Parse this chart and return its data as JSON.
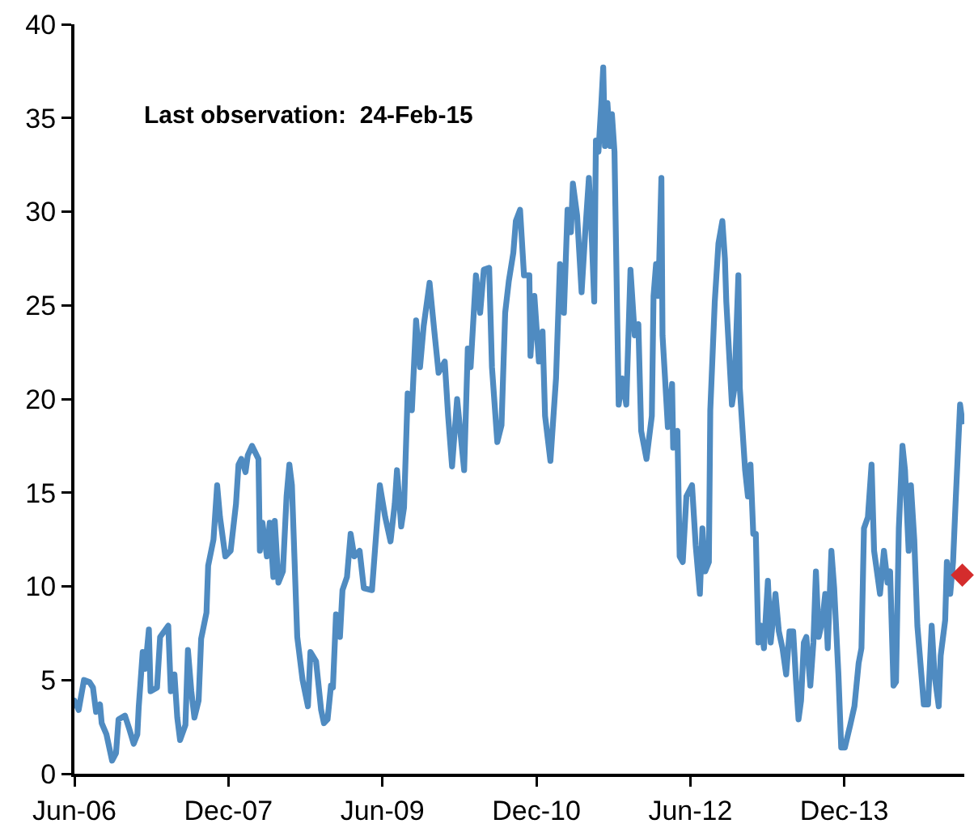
{
  "chart_data": {
    "type": "line",
    "annotations": [
      "Last observation:  24-Feb-15"
    ],
    "x": [
      "2006-06-01",
      "2006-06-16",
      "2006-07-05",
      "2006-07-24",
      "2006-08-06",
      "2006-08-17",
      "2006-08-31",
      "2006-09-06",
      "2006-09-23",
      "2006-10-13",
      "2006-10-27",
      "2006-11-05",
      "2006-11-28",
      "2006-12-13",
      "2006-12-29",
      "2007-01-11",
      "2007-01-16",
      "2007-01-30",
      "2007-02-08",
      "2007-02-21",
      "2007-02-27",
      "2007-03-22",
      "2007-04-02",
      "2007-05-01",
      "2007-05-10",
      "2007-05-23",
      "2007-06-02",
      "2007-06-12",
      "2007-07-01",
      "2007-07-10",
      "2007-07-22",
      "2007-08-02",
      "2007-08-17",
      "2007-08-26",
      "2007-09-14",
      "2007-09-20",
      "2007-10-09",
      "2007-10-22",
      "2007-11-01",
      "2007-11-20",
      "2007-12-09",
      "2007-12-28",
      "2008-01-06",
      "2008-01-16",
      "2008-01-31",
      "2008-02-08",
      "2008-02-23",
      "2008-03-17",
      "2008-03-22",
      "2008-03-31",
      "2008-04-16",
      "2008-04-26",
      "2008-05-09",
      "2008-05-14",
      "2008-05-27",
      "2008-06-12",
      "2008-06-25",
      "2008-07-05",
      "2008-07-14",
      "2008-08-02",
      "2008-08-21",
      "2008-09-09",
      "2008-09-18",
      "2008-10-08",
      "2008-10-26",
      "2008-11-05",
      "2008-11-18",
      "2008-11-30",
      "2008-12-07",
      "2008-12-18",
      "2009-01-01",
      "2009-01-10",
      "2009-01-26",
      "2009-02-08",
      "2009-02-21",
      "2009-03-12",
      "2009-03-27",
      "2009-04-25",
      "2009-05-23",
      "2009-06-11",
      "2009-06-30",
      "2009-07-15",
      "2009-07-23",
      "2009-08-07",
      "2009-08-17",
      "2009-08-30",
      "2009-09-14",
      "2009-09-29",
      "2009-10-13",
      "2009-10-26",
      "2009-11-16",
      "2009-12-03",
      "2009-12-18",
      "2010-01-09",
      "2010-01-21",
      "2010-02-04",
      "2010-02-22",
      "2010-03-19",
      "2010-04-01",
      "2010-04-11",
      "2010-04-30",
      "2010-05-15",
      "2010-05-28",
      "2010-06-16",
      "2010-06-26",
      "2010-07-15",
      "2010-07-30",
      "2010-08-12",
      "2010-08-25",
      "2010-09-10",
      "2010-09-19",
      "2010-10-04",
      "2010-10-18",
      "2010-11-06",
      "2010-11-10",
      "2010-11-24",
      "2010-12-10",
      "2010-12-23",
      "2011-01-01",
      "2011-01-20",
      "2011-02-09",
      "2011-02-23",
      "2011-03-09",
      "2011-03-22",
      "2011-04-03",
      "2011-04-10",
      "2011-04-25",
      "2011-05-11",
      "2011-05-24",
      "2011-06-06",
      "2011-06-17",
      "2011-06-25",
      "2011-07-01",
      "2011-07-10",
      "2011-07-20",
      "2011-07-27",
      "2011-08-02",
      "2011-08-11",
      "2011-08-21",
      "2011-08-27",
      "2011-09-05",
      "2011-09-20",
      "2011-10-03",
      "2011-10-17",
      "2011-11-01",
      "2011-11-16",
      "2011-11-29",
      "2011-12-09",
      "2011-12-28",
      "2012-01-16",
      "2012-01-22",
      "2012-01-31",
      "2012-02-08",
      "2012-02-19",
      "2012-02-23",
      "2012-03-03",
      "2012-03-13",
      "2012-03-28",
      "2012-04-01",
      "2012-04-16",
      "2012-04-24",
      "2012-05-05",
      "2012-05-18",
      "2012-06-07",
      "2012-06-20",
      "2012-07-05",
      "2012-07-14",
      "2012-07-24",
      "2012-08-06",
      "2012-08-11",
      "2012-08-27",
      "2012-09-09",
      "2012-09-23",
      "2012-10-02",
      "2012-10-07",
      "2012-10-27",
      "2012-11-05",
      "2012-11-19",
      "2012-11-24",
      "2012-12-13",
      "2012-12-23",
      "2013-01-01",
      "2013-01-11",
      "2013-01-20",
      "2013-01-29",
      "2013-02-08",
      "2013-02-18",
      "2013-03-04",
      "2013-03-14",
      "2013-03-31",
      "2013-04-12",
      "2013-04-25",
      "2013-05-08",
      "2013-05-20",
      "2013-06-02",
      "2013-06-12",
      "2013-06-21",
      "2013-06-30",
      "2013-07-10",
      "2013-07-19",
      "2013-08-02",
      "2013-08-13",
      "2013-08-22",
      "2013-09-01",
      "2013-09-14",
      "2013-09-24",
      "2013-10-03",
      "2013-10-16",
      "2013-10-26",
      "2013-11-10",
      "2013-11-20",
      "2013-12-03",
      "2013-12-22",
      "2014-01-06",
      "2014-01-21",
      "2014-01-31",
      "2014-02-09",
      "2014-02-23",
      "2014-03-08",
      "2014-03-17",
      "2014-04-07",
      "2014-04-21",
      "2014-05-04",
      "2014-05-13",
      "2014-05-25",
      "2014-06-03",
      "2014-06-13",
      "2014-06-26",
      "2014-07-05",
      "2014-07-18",
      "2014-07-26",
      "2014-08-07",
      "2014-08-18",
      "2014-09-10",
      "2014-09-25",
      "2014-10-08",
      "2014-10-18",
      "2014-11-02",
      "2014-11-09",
      "2014-11-25",
      "2014-12-01",
      "2014-12-13",
      "2014-12-23",
      "2015-01-02",
      "2015-01-17",
      "2015-01-25"
    ],
    "series": [
      {
        "color": "#4f8bc1",
        "values": [
          3.9,
          3.4,
          5.0,
          4.9,
          4.6,
          3.3,
          3.7,
          2.7,
          2.1,
          0.7,
          1.1,
          2.9,
          3.1,
          2.4,
          1.6,
          2.1,
          3.6,
          6.5,
          5.6,
          7.7,
          4.4,
          4.6,
          7.3,
          7.9,
          4.4,
          5.3,
          3.0,
          1.8,
          2.6,
          6.6,
          4.4,
          3.0,
          3.9,
          7.2,
          8.6,
          11.1,
          12.5,
          15.4,
          13.7,
          11.6,
          11.9,
          14.4,
          16.5,
          16.8,
          16.1,
          17.0,
          17.5,
          16.8,
          11.9,
          13.4,
          11.6,
          13.4,
          10.5,
          13.5,
          10.2,
          10.8,
          14.8,
          16.5,
          15.4,
          7.3,
          5.0,
          3.6,
          6.5,
          6.0,
          3.4,
          2.7,
          2.9,
          4.7,
          4.6,
          8.5,
          7.3,
          9.8,
          10.5,
          12.8,
          11.6,
          11.9,
          9.9,
          9.8,
          15.4,
          13.7,
          12.4,
          14.4,
          16.2,
          13.2,
          14.2,
          20.3,
          19.4,
          24.2,
          21.7,
          23.9,
          26.2,
          23.6,
          21.4,
          22.0,
          19.1,
          16.4,
          20.0,
          16.2,
          22.7,
          21.7,
          26.6,
          24.6,
          26.9,
          27.0,
          21.7,
          17.7,
          18.6,
          24.6,
          26.3,
          27.8,
          29.5,
          30.1,
          26.6,
          26.6,
          22.3,
          25.5,
          22.0,
          23.6,
          19.1,
          16.7,
          21.1,
          27.2,
          24.6,
          30.1,
          28.9,
          31.5,
          29.8,
          25.7,
          28.9,
          31.8,
          28.3,
          25.2,
          33.8,
          33.2,
          35.7,
          37.7,
          33.5,
          35.8,
          33.5,
          35.2,
          33.2,
          19.7,
          21.1,
          19.7,
          26.9,
          23.4,
          24.0,
          18.3,
          16.8,
          19.1,
          25.5,
          27.2,
          25.5,
          31.8,
          23.4,
          21.1,
          18.5,
          20.8,
          17.4,
          18.3,
          11.6,
          11.3,
          14.8,
          15.4,
          12.2,
          9.6,
          13.1,
          10.8,
          11.3,
          19.4,
          25.2,
          28.3,
          29.5,
          27.5,
          25.2,
          19.7,
          20.6,
          26.6,
          20.6,
          16.2,
          14.8,
          16.5,
          12.8,
          12.8,
          7.0,
          7.9,
          6.7,
          10.3,
          7.0,
          9.6,
          7.6,
          6.7,
          5.3,
          7.6,
          7.6,
          5.0,
          2.9,
          3.9,
          7.0,
          7.3,
          4.7,
          7.0,
          10.8,
          7.3,
          8.2,
          9.6,
          6.7,
          11.9,
          9.9,
          5.3,
          1.4,
          1.4,
          2.6,
          3.6,
          5.9,
          6.7,
          13.1,
          13.7,
          16.5,
          11.9,
          9.6,
          11.9,
          10.2,
          10.8,
          4.7,
          4.9,
          13.1,
          17.5,
          16.2,
          11.9,
          15.4,
          12.5,
          7.9,
          3.7,
          3.7,
          7.9,
          5.3,
          3.6,
          6.3,
          8.2,
          11.3,
          9.6,
          11.3,
          14.8,
          19.7,
          18.8
        ]
      },
      {
        "type": "scatter",
        "marker": "diamond",
        "color": "#d42c2c",
        "x": [
          "2015-01-25"
        ],
        "values": [
          10.6
        ]
      }
    ],
    "xlim": [
      "2006-06-01",
      "2015-02-01"
    ],
    "xticks": [
      {
        "value": "2006-06-01",
        "label": "Jun-06"
      },
      {
        "value": "2007-12-01",
        "label": "Dec-07"
      },
      {
        "value": "2009-06-01",
        "label": "Jun-09"
      },
      {
        "value": "2010-12-01",
        "label": "Dec-10"
      },
      {
        "value": "2012-06-01",
        "label": "Jun-12"
      },
      {
        "value": "2013-12-01",
        "label": "Dec-13"
      }
    ],
    "ylim": [
      0,
      40
    ],
    "yticks": [
      0,
      5,
      10,
      15,
      20,
      25,
      30,
      35,
      40
    ],
    "marker": "none",
    "line_style": "solid"
  }
}
